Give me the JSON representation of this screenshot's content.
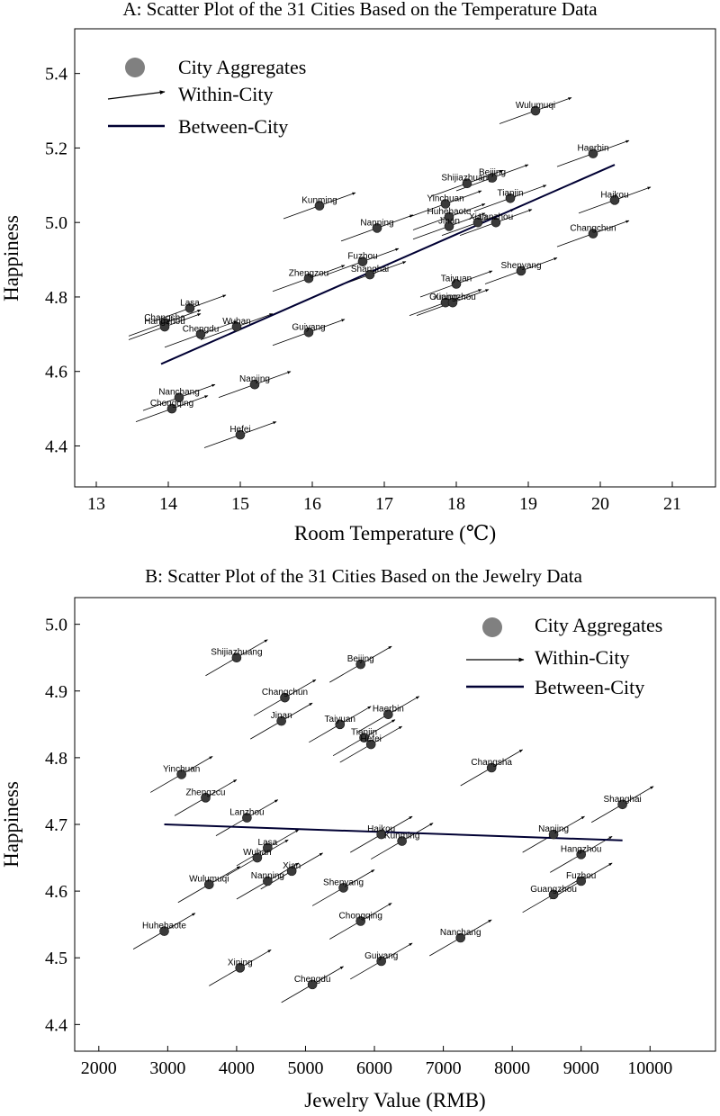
{
  "colors": {
    "point": "#3a3a3a",
    "legend_point": "#808080",
    "line": "#000033",
    "arrow": "#000000"
  },
  "chart_data": [
    {
      "type": "scatter",
      "title": "A: Scatter Plot of the 31 Cities Based on the Temperature Data",
      "xlabel": "Room Temperature (℃)",
      "ylabel": "Happiness",
      "xlim": [
        12.7,
        21.6
      ],
      "ylim": [
        4.29,
        5.52
      ],
      "xticks": [
        "13",
        "14",
        "15",
        "16",
        "17",
        "18",
        "19",
        "20",
        "21"
      ],
      "yticks": [
        "4.4",
        "4.6",
        "4.8",
        "5.0",
        "5.2",
        "5.4"
      ],
      "legend": {
        "points": "City Aggregates",
        "arrow": "Within-City",
        "line": "Between-City",
        "placement": "top-left"
      },
      "between_line": {
        "x": [
          13.9,
          20.2
        ],
        "y": [
          4.62,
          5.155
        ]
      },
      "within_slope": 0.07,
      "points": [
        {
          "name": "Wulumuqi",
          "x": 19.1,
          "y": 5.3
        },
        {
          "name": "Haerbin",
          "x": 19.9,
          "y": 5.185
        },
        {
          "name": "Shijiazhuang",
          "x": 18.15,
          "y": 5.105
        },
        {
          "name": "Beijing",
          "x": 18.5,
          "y": 5.12
        },
        {
          "name": "Tianjin",
          "x": 18.75,
          "y": 5.065
        },
        {
          "name": "Haikou",
          "x": 20.2,
          "y": 5.06
        },
        {
          "name": "Changchun",
          "x": 19.9,
          "y": 4.97
        },
        {
          "name": "Kunming",
          "x": 16.1,
          "y": 5.045
        },
        {
          "name": "Yinchuan",
          "x": 17.85,
          "y": 5.05
        },
        {
          "name": "Huhehaote",
          "x": 17.9,
          "y": 5.015
        },
        {
          "name": "Lanzhou",
          "x": 18.55,
          "y": 5.0
        },
        {
          "name": "Xian",
          "x": 18.3,
          "y": 5.0
        },
        {
          "name": "Jinan",
          "x": 17.9,
          "y": 4.99
        },
        {
          "name": "Nanning",
          "x": 16.9,
          "y": 4.985
        },
        {
          "name": "Shenyang",
          "x": 18.9,
          "y": 4.87
        },
        {
          "name": "Fuzhou",
          "x": 16.7,
          "y": 4.895
        },
        {
          "name": "Shanghai",
          "x": 16.8,
          "y": 4.86
        },
        {
          "name": "Zhengzou",
          "x": 15.95,
          "y": 4.85
        },
        {
          "name": "Taiyuan",
          "x": 18.0,
          "y": 4.835
        },
        {
          "name": "Xining",
          "x": 17.85,
          "y": 4.785
        },
        {
          "name": "Guangzhou",
          "x": 17.95,
          "y": 4.785
        },
        {
          "name": "Lasa",
          "x": 14.3,
          "y": 4.77
        },
        {
          "name": "Changsha",
          "x": 13.95,
          "y": 4.73
        },
        {
          "name": "Hangzhou",
          "x": 13.95,
          "y": 4.72
        },
        {
          "name": "Chengdu",
          "x": 14.45,
          "y": 4.7
        },
        {
          "name": "Wuhan",
          "x": 14.95,
          "y": 4.72
        },
        {
          "name": "Guiyang",
          "x": 15.95,
          "y": 4.705
        },
        {
          "name": "Nanjing",
          "x": 15.2,
          "y": 4.565
        },
        {
          "name": "Nanchang",
          "x": 14.15,
          "y": 4.53
        },
        {
          "name": "Chongqing",
          "x": 14.05,
          "y": 4.5
        },
        {
          "name": "Hefei",
          "x": 15.0,
          "y": 4.43
        }
      ]
    },
    {
      "type": "scatter",
      "title": "B: Scatter Plot of the 31 Cities Based on the Jewelry Data",
      "xlabel": "Jewelry Value (RMB)",
      "ylabel": "Happiness",
      "xlim": [
        1650,
        10950
      ],
      "ylim": [
        4.36,
        5.04
      ],
      "xticks": [
        "2000",
        "3000",
        "4000",
        "5000",
        "6000",
        "7000",
        "8000",
        "9000",
        "10000"
      ],
      "yticks": [
        "4.4",
        "4.5",
        "4.6",
        "4.7",
        "4.8",
        "4.9",
        "5.0"
      ],
      "legend": {
        "points": "City Aggregates",
        "arrow": "Within-City",
        "line": "Between-City",
        "placement": "top-right"
      },
      "between_line": {
        "x": [
          2950,
          9600
        ],
        "y": [
          4.7,
          4.676
        ]
      },
      "within_slope": 6e-05,
      "points": [
        {
          "name": "Shijiazhuang",
          "x": 4000,
          "y": 4.95
        },
        {
          "name": "Beijing",
          "x": 5800,
          "y": 4.94
        },
        {
          "name": "Changchun",
          "x": 4700,
          "y": 4.89
        },
        {
          "name": "Jinan",
          "x": 4650,
          "y": 4.855
        },
        {
          "name": "Taiyuan",
          "x": 5500,
          "y": 4.85
        },
        {
          "name": "Haerbin",
          "x": 6200,
          "y": 4.865
        },
        {
          "name": "Tianjin",
          "x": 5850,
          "y": 4.83
        },
        {
          "name": "Hefei",
          "x": 5950,
          "y": 4.82
        },
        {
          "name": "Changsha",
          "x": 7700,
          "y": 4.785
        },
        {
          "name": "Yinchuan",
          "x": 3200,
          "y": 4.775
        },
        {
          "name": "Zhengzcu",
          "x": 3550,
          "y": 4.74
        },
        {
          "name": "Shanghai",
          "x": 9600,
          "y": 4.73
        },
        {
          "name": "Lanzhou",
          "x": 4150,
          "y": 4.71
        },
        {
          "name": "Haikou",
          "x": 6100,
          "y": 4.685
        },
        {
          "name": "Kunming",
          "x": 6400,
          "y": 4.675
        },
        {
          "name": "Nanjing",
          "x": 8600,
          "y": 4.685
        },
        {
          "name": "Hangzhou",
          "x": 9000,
          "y": 4.655
        },
        {
          "name": "Lasa",
          "x": 4450,
          "y": 4.665
        },
        {
          "name": "Wuhan",
          "x": 4300,
          "y": 4.65
        },
        {
          "name": "Xian",
          "x": 4800,
          "y": 4.63
        },
        {
          "name": "Nanning",
          "x": 4450,
          "y": 4.615
        },
        {
          "name": "Wulumuqi",
          "x": 3600,
          "y": 4.61
        },
        {
          "name": "Shenyang",
          "x": 5550,
          "y": 4.605
        },
        {
          "name": "Fuzhou",
          "x": 9000,
          "y": 4.615
        },
        {
          "name": "Guangzhou",
          "x": 8600,
          "y": 4.595
        },
        {
          "name": "Chongqing",
          "x": 5800,
          "y": 4.555
        },
        {
          "name": "Huhehaote",
          "x": 2950,
          "y": 4.54
        },
        {
          "name": "Nanchang",
          "x": 7250,
          "y": 4.53
        },
        {
          "name": "Xining",
          "x": 4050,
          "y": 4.485
        },
        {
          "name": "Guiyang",
          "x": 6100,
          "y": 4.495
        },
        {
          "name": "Chengdu",
          "x": 5100,
          "y": 4.46
        }
      ]
    }
  ]
}
